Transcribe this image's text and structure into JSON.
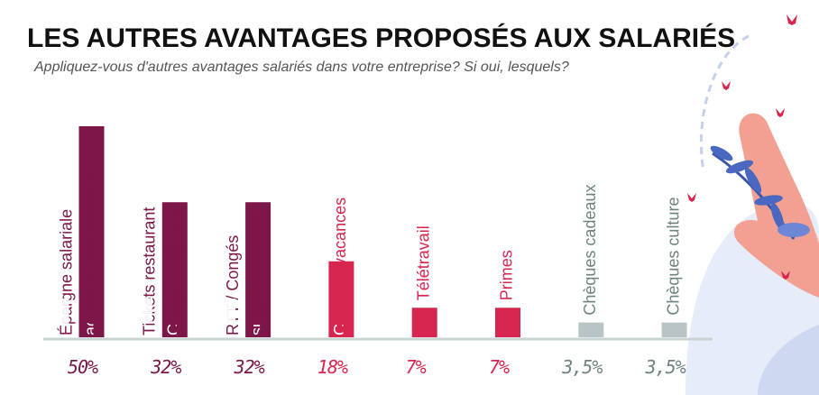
{
  "chart_data": {
    "type": "bar",
    "title": "LES AUTRES AVANTAGES PROPOSÉS AUX SALARIÉS",
    "subtitle": "Appliquez-vous d'autres avantages salariés dans votre entreprise? Si oui, lesquels?",
    "categories": [
      [
        "Épargne salariale",
        "accord de participation"
      ],
      [
        "Tickets restaurant",
        "Chèques déjeuner"
      ],
      [
        "RTT / Congés",
        "supplémentaires"
      ],
      [
        "Chèques vacances"
      ],
      [
        "Télétravail"
      ],
      [
        "Primes"
      ],
      [
        "Chèques cadeaux"
      ],
      [
        "Chèques culture"
      ]
    ],
    "values": [
      50,
      32,
      32,
      18,
      7,
      7,
      3.5,
      3.5
    ],
    "value_labels": [
      "50%",
      "32%",
      "32%",
      "18%",
      "7%",
      "7%",
      "3,5%",
      "3,5%"
    ],
    "colors": [
      "#7c1747",
      "#7c1747",
      "#7c1747",
      "#d6264f",
      "#d6264f",
      "#d6264f",
      "#b9c5c5",
      "#b9c5c5"
    ],
    "label_colors": [
      "#7c1747",
      "#7c1747",
      "#7c1747",
      "#d6264f",
      "#d6264f",
      "#d6264f",
      "#6f8181",
      "#6f8181"
    ],
    "ylim": [
      0,
      50
    ]
  }
}
